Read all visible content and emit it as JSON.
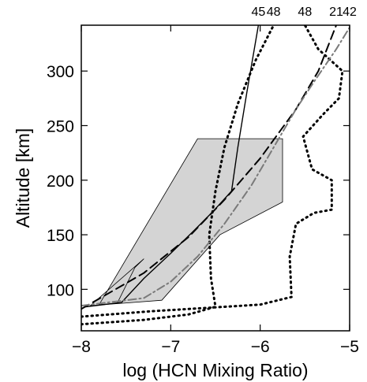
{
  "chart_data": {
    "type": "line",
    "title": "",
    "xlabel": "log (HCN Mixing Ratio)",
    "ylabel": "Altitude [km]",
    "xlim": [
      -8,
      -5
    ],
    "ylim": [
      62,
      342
    ],
    "xticks": [
      -8,
      -7,
      -6,
      -5
    ],
    "yticks": [
      100,
      150,
      200,
      250,
      300
    ],
    "grid": false,
    "shaded_region": {
      "color": "#d4d4d4",
      "points": [
        [
          -7.9,
          85
        ],
        [
          -7.1,
          90
        ],
        [
          -6.45,
          150
        ],
        [
          -5.75,
          180
        ],
        [
          -5.75,
          238
        ],
        [
          -6.7,
          238
        ],
        [
          -7.8,
          86
        ],
        [
          -7.6,
          87
        ],
        [
          -7.4,
          120
        ],
        [
          -7.3,
          128
        ]
      ]
    },
    "series": [
      {
        "name": "45",
        "color": "#000000",
        "style": "solid",
        "points": [
          [
            -7.95,
            84
          ],
          [
            -7.55,
            88
          ],
          [
            -7.3,
            110
          ],
          [
            -7.0,
            133
          ],
          [
            -6.75,
            153
          ],
          [
            -6.52,
            172
          ],
          [
            -6.32,
            190
          ],
          [
            -6.25,
            230
          ],
          [
            -6.15,
            280
          ],
          [
            -6.02,
            342
          ]
        ]
      },
      {
        "name": "48",
        "color": "#000000",
        "style": "dotted",
        "points": [
          [
            -8.0,
            68
          ],
          [
            -7.3,
            72
          ],
          [
            -6.8,
            77
          ],
          [
            -6.5,
            84
          ],
          [
            -6.55,
            110
          ],
          [
            -6.57,
            150
          ],
          [
            -6.5,
            190
          ],
          [
            -6.4,
            230
          ],
          [
            -6.25,
            270
          ],
          [
            -6.05,
            310
          ],
          [
            -5.85,
            342
          ]
        ]
      },
      {
        "name": "48",
        "color": "#000000",
        "style": "dotted",
        "points": [
          [
            -8.0,
            75
          ],
          [
            -7.2,
            80
          ],
          [
            -6.0,
            86
          ],
          [
            -5.65,
            93
          ],
          [
            -5.67,
            130
          ],
          [
            -5.6,
            160
          ],
          [
            -5.4,
            170
          ],
          [
            -5.2,
            173
          ],
          [
            -5.2,
            200
          ],
          [
            -5.42,
            210
          ],
          [
            -5.52,
            240
          ],
          [
            -5.3,
            260
          ],
          [
            -5.12,
            275
          ],
          [
            -5.08,
            300
          ],
          [
            -5.35,
            320
          ],
          [
            -5.5,
            342
          ]
        ]
      },
      {
        "name": "21",
        "color": "#000000",
        "style": "dashed",
        "points": [
          [
            -8.0,
            82
          ],
          [
            -7.3,
            115
          ],
          [
            -6.8,
            148
          ],
          [
            -6.4,
            182
          ],
          [
            -6.0,
            220
          ],
          [
            -5.6,
            265
          ],
          [
            -5.35,
            300
          ],
          [
            -5.15,
            342
          ]
        ]
      },
      {
        "name": "42",
        "color": "#7a7a7a",
        "style": "dashdot",
        "points": [
          [
            -8.0,
            85
          ],
          [
            -7.3,
            92
          ],
          [
            -7.0,
            107
          ],
          [
            -6.7,
            130
          ],
          [
            -6.4,
            160
          ],
          [
            -6.1,
            195
          ],
          [
            -5.85,
            230
          ],
          [
            -5.6,
            265
          ],
          [
            -5.4,
            290
          ],
          [
            -5.15,
            320
          ],
          [
            -5.0,
            340
          ]
        ]
      }
    ]
  }
}
